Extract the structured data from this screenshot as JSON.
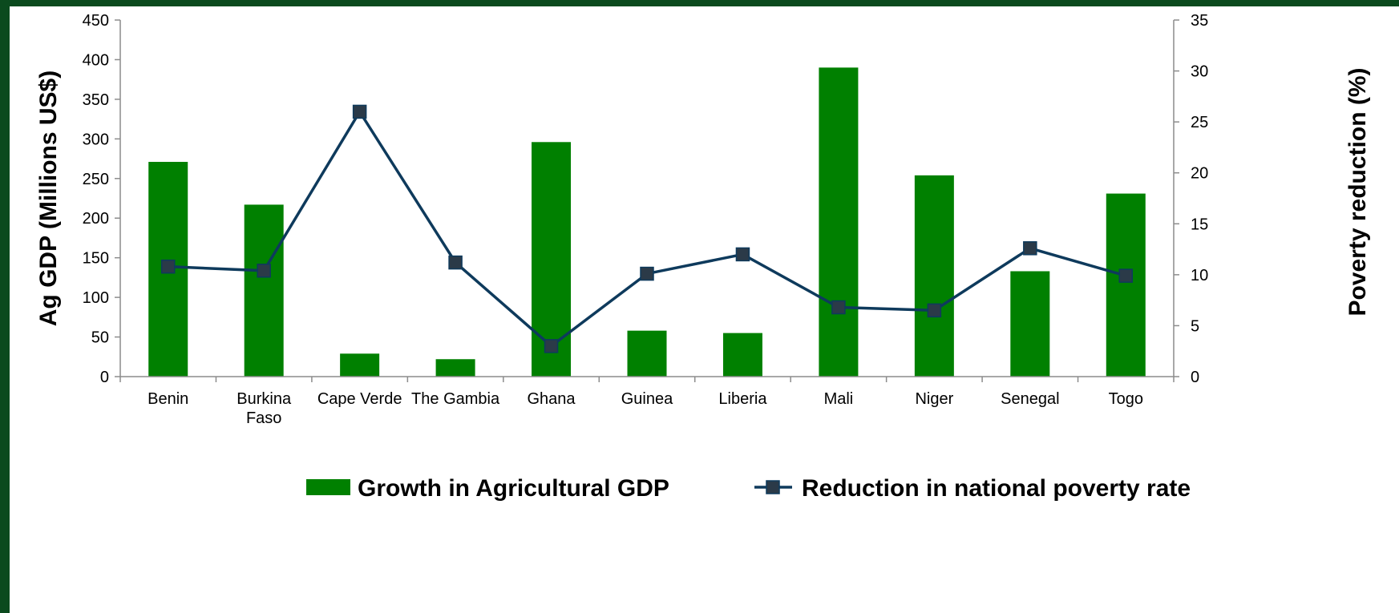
{
  "colors": {
    "frame": "#0b4a1e",
    "bar": "#008000",
    "line": "#0e3a5c",
    "marker": "#2b3a48"
  },
  "chart_data": {
    "type": "bar",
    "categories": [
      "Benin",
      "Burkina Faso",
      "Cape Verde",
      "The Gambia",
      "Ghana",
      "Guinea",
      "Liberia",
      "Mali",
      "Niger",
      "Senegal",
      "Togo"
    ],
    "category_labels": [
      [
        "Benin"
      ],
      [
        "Burkina",
        "Faso"
      ],
      [
        "Cape Verde"
      ],
      [
        "The Gambia"
      ],
      [
        "Ghana"
      ],
      [
        "Guinea"
      ],
      [
        "Liberia"
      ],
      [
        "Mali"
      ],
      [
        "Niger"
      ],
      [
        "Senegal"
      ],
      [
        "Togo"
      ]
    ],
    "series": [
      {
        "name": "Growth in Agricultural GDP",
        "type": "bar",
        "axis": "left",
        "values": [
          271,
          217,
          29,
          22,
          296,
          58,
          55,
          390,
          254,
          133,
          231
        ]
      },
      {
        "name": "Reduction in national poverty rate",
        "type": "line",
        "axis": "right",
        "marker": "square",
        "values": [
          10.8,
          10.4,
          26.0,
          11.2,
          3.0,
          10.1,
          12.0,
          6.8,
          6.5,
          12.6,
          9.9
        ]
      }
    ],
    "ylabel": "Ag GDP (Millions US$)",
    "ylabel_right": "Poverty reduction  (%)",
    "ylim": [
      0,
      450
    ],
    "ylim_right": [
      0,
      35
    ],
    "yticks": [
      0,
      50,
      100,
      150,
      200,
      250,
      300,
      350,
      400,
      450
    ],
    "yticks_right": [
      0,
      5,
      10,
      15,
      20,
      25,
      30,
      35
    ],
    "grid": false,
    "legend_position": "bottom"
  }
}
